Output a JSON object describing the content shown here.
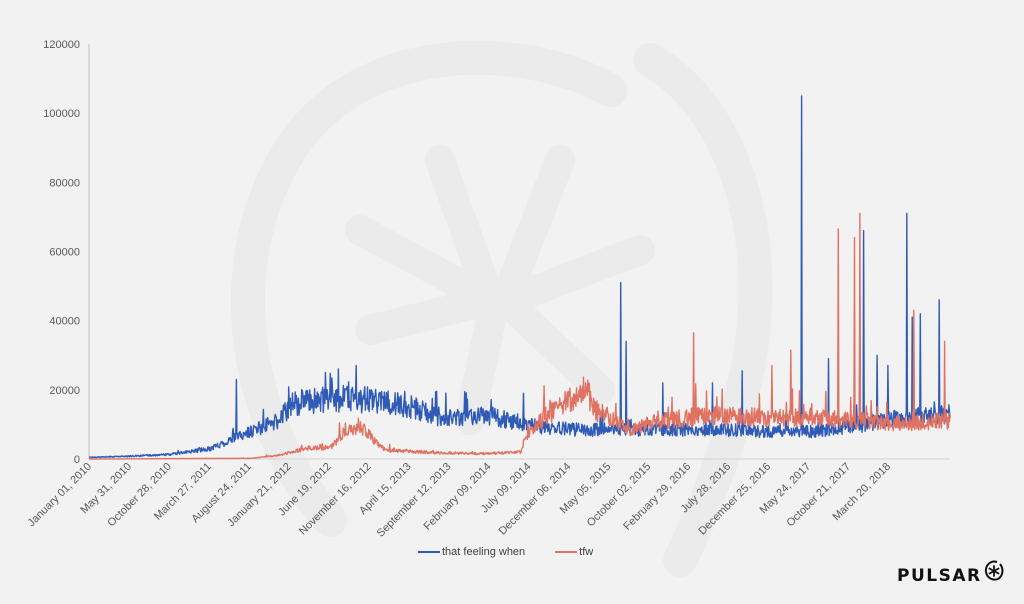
{
  "chart_data": {
    "type": "line",
    "title": "",
    "xlabel": "",
    "ylabel": "",
    "ylim": [
      0,
      120000
    ],
    "xlim": [
      "January 01, 2010",
      "September 2018"
    ],
    "grid": false,
    "legend_position": "bottom",
    "y_ticks": [
      "0",
      "20000",
      "40000",
      "60000",
      "80000",
      "100000",
      "120000"
    ],
    "x_ticks": [
      "January 01, 2010",
      "May 31, 2010",
      "October 28, 2010",
      "March 27, 2011",
      "August 24, 2011",
      "January 21, 2012",
      "June 19, 2012",
      "November 16, 2012",
      "April 15, 2013",
      "September 12, 2013",
      "February 09, 2014",
      "July 09, 2014",
      "December 06, 2014",
      "May 05, 2015",
      "October 02, 2015",
      "February 29, 2016",
      "July 28, 2016",
      "December 25, 2016",
      "May 24, 2017",
      "October 21, 2017",
      "March 20, 2018"
    ],
    "x_units": "days since January 01, 2010",
    "series": [
      {
        "name": "that feeling when",
        "color": "#2f5bb7",
        "baseline": [
          [
            0,
            500
          ],
          [
            150,
            800
          ],
          [
            300,
            1300
          ],
          [
            450,
            3000
          ],
          [
            600,
            8000
          ],
          [
            700,
            11000
          ],
          [
            750,
            16000
          ],
          [
            900,
            17500
          ],
          [
            1050,
            17000
          ],
          [
            1200,
            15000
          ],
          [
            1300,
            11500
          ],
          [
            1450,
            13000
          ],
          [
            1600,
            10500
          ],
          [
            1650,
            9500
          ],
          [
            1800,
            8500
          ],
          [
            2000,
            8500
          ],
          [
            2300,
            8500
          ],
          [
            2500,
            8000
          ],
          [
            2700,
            8000
          ],
          [
            2850,
            9500
          ],
          [
            3000,
            12000
          ],
          [
            3180,
            13000
          ]
        ],
        "spikes": [
          [
            545,
            23000
          ],
          [
            875,
            25000
          ],
          [
            990,
            27000
          ],
          [
            1610,
            19000
          ],
          [
            1970,
            51000
          ],
          [
            1990,
            34000
          ],
          [
            2125,
            22000
          ],
          [
            2310,
            22000
          ],
          [
            2420,
            25500
          ],
          [
            2640,
            105000
          ],
          [
            2740,
            29000
          ],
          [
            2870,
            66000
          ],
          [
            2855,
            47000
          ],
          [
            2920,
            30000
          ],
          [
            3030,
            71000
          ],
          [
            3080,
            42000
          ],
          [
            3150,
            46000
          ],
          [
            3050,
            41000
          ],
          [
            2960,
            27000
          ]
        ]
      },
      {
        "name": "tfw",
        "color": "#e07262",
        "baseline": [
          [
            0,
            0
          ],
          [
            600,
            200
          ],
          [
            700,
            1000
          ],
          [
            800,
            3000
          ],
          [
            900,
            3500
          ],
          [
            950,
            8500
          ],
          [
            1020,
            9000
          ],
          [
            1060,
            5000
          ],
          [
            1100,
            2500
          ],
          [
            1300,
            1800
          ],
          [
            1450,
            1500
          ],
          [
            1600,
            2000
          ],
          [
            1620,
            7000
          ],
          [
            1700,
            13000
          ],
          [
            1800,
            18000
          ],
          [
            1840,
            20000
          ],
          [
            1880,
            14000
          ],
          [
            1950,
            11000
          ],
          [
            2000,
            8000
          ],
          [
            2100,
            11000
          ],
          [
            2300,
            12500
          ],
          [
            2500,
            12000
          ],
          [
            2700,
            12000
          ],
          [
            2850,
            11000
          ],
          [
            3000,
            10500
          ],
          [
            3180,
            11000
          ]
        ],
        "spikes": [
          [
            1840,
            22000
          ],
          [
            2240,
            36500
          ],
          [
            2530,
            27000
          ],
          [
            2600,
            31500
          ],
          [
            2775,
            66500
          ],
          [
            2835,
            64000
          ],
          [
            2855,
            71000
          ],
          [
            3055,
            43000
          ],
          [
            3170,
            34000
          ]
        ]
      }
    ]
  },
  "legend": {
    "items": [
      {
        "label": "that feeling when",
        "color": "#2f5bb7"
      },
      {
        "label": "tfw",
        "color": "#e07262"
      }
    ]
  },
  "brand": {
    "name": "PULSAR"
  }
}
